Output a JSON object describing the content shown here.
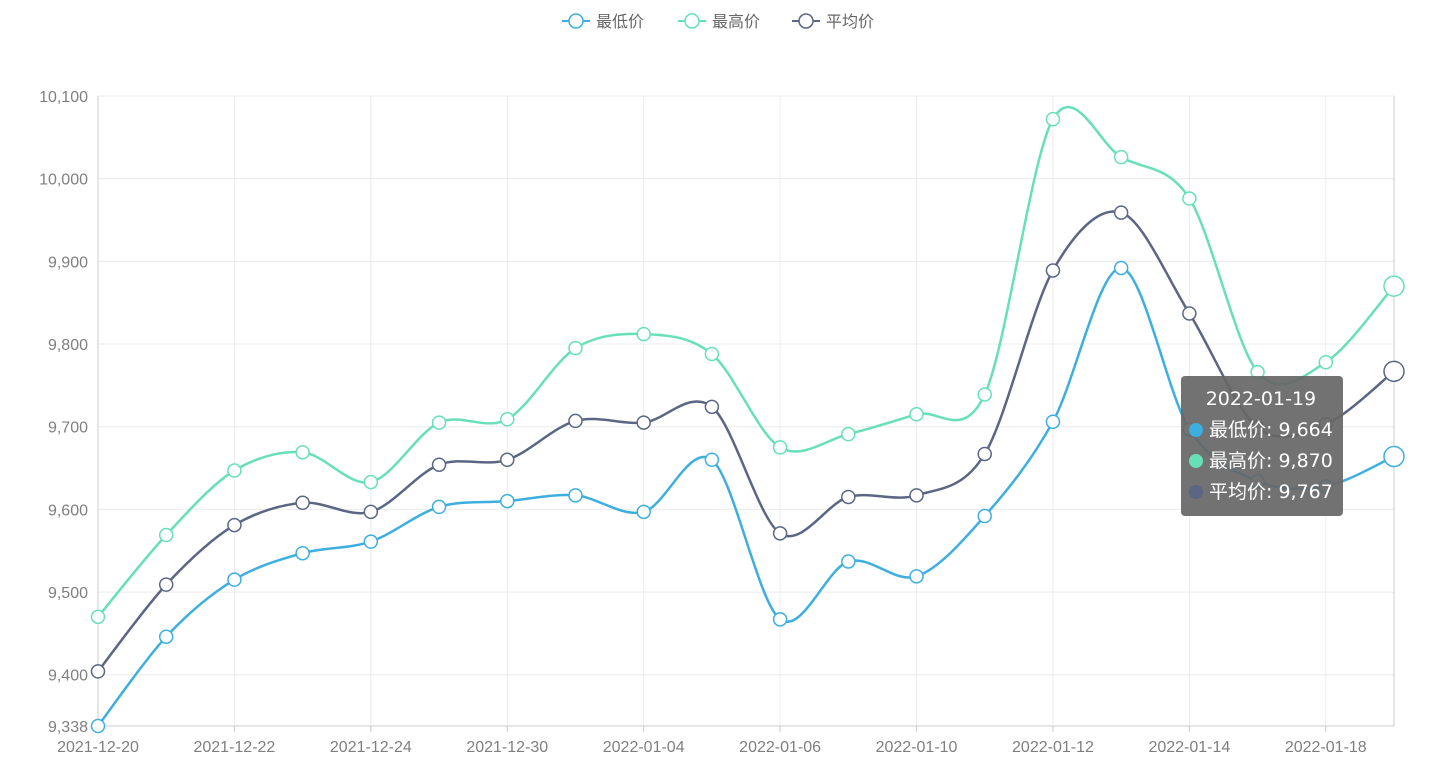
{
  "colors": {
    "min": "#3daee0",
    "max": "#67e0b8",
    "avg": "#5b6685",
    "grid": "#ececec",
    "tick": "#7f7f7f"
  },
  "legend": [
    {
      "key": "min",
      "label": "最低价"
    },
    {
      "key": "max",
      "label": "最高价"
    },
    {
      "key": "avg",
      "label": "平均价"
    }
  ],
  "chart_data": {
    "type": "line",
    "smooth": true,
    "x_tick_labels": [
      "2021-12-20",
      "2021-12-22",
      "2021-12-24",
      "2021-12-30",
      "2022-01-04",
      "2022-01-06",
      "2022-01-10",
      "2022-01-12",
      "2022-01-14",
      "2022-01-18"
    ],
    "y_tick_labels": [
      "9,338",
      "9,400",
      "9,500",
      "9,600",
      "9,700",
      "9,800",
      "9,900",
      "10,000",
      "10,100"
    ],
    "ylim": [
      9338,
      10100
    ],
    "grid": true,
    "legend_position": "top-center",
    "point_count": 20,
    "series": [
      {
        "key": "min",
        "name": "最低价",
        "values": [
          9338,
          9446,
          9515,
          9547,
          9561,
          9603,
          9610,
          9617,
          9597,
          9660,
          9467,
          9537,
          9519,
          9592,
          9706,
          9892,
          9697,
          9634,
          9628,
          9664
        ]
      },
      {
        "key": "max",
        "name": "最高价",
        "values": [
          9470,
          9569,
          9647,
          9669,
          9633,
          9705,
          9709,
          9795,
          9812,
          9788,
          9675,
          9691,
          9715,
          9739,
          10072,
          10026,
          9976,
          9766,
          9778,
          9870
        ]
      },
      {
        "key": "avg",
        "name": "平均价",
        "values": [
          9404,
          9509,
          9581,
          9608,
          9597,
          9654,
          9660,
          9707,
          9705,
          9724,
          9571,
          9615,
          9617,
          9667,
          9889,
          9959,
          9837,
          9699,
          9703,
          9767
        ]
      }
    ]
  },
  "tooltip": {
    "title": "2022-01-19",
    "rows": [
      {
        "key": "min",
        "text": "最低价: 9,664"
      },
      {
        "key": "max",
        "text": "最高价: 9,870"
      },
      {
        "key": "avg",
        "text": "平均价: 9,767"
      }
    ]
  }
}
